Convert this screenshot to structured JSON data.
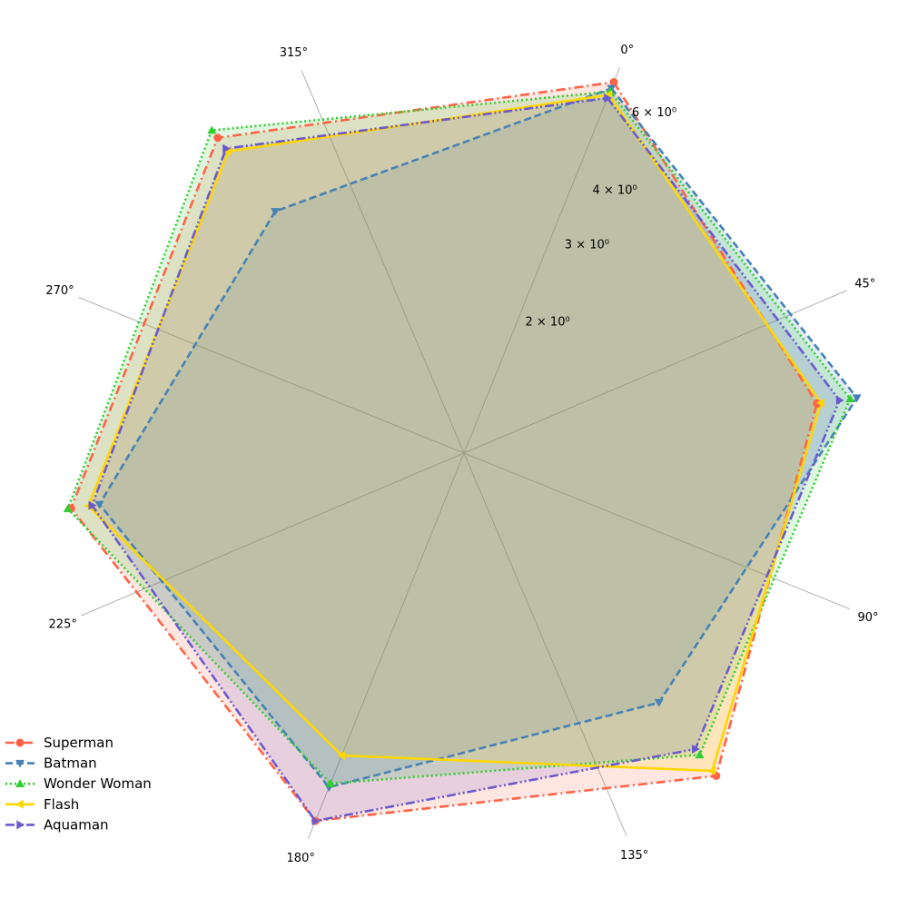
{
  "chart_data": {
    "type": "radar",
    "title": "",
    "radial_scale": "log",
    "radial_range": [
      1,
      7
    ],
    "radial_tick_labels": [
      "2 × 10⁰",
      "3 × 10⁰",
      "4 × 10⁰",
      "6 × 10⁰"
    ],
    "radial_tick_values": [
      2,
      3,
      4,
      6
    ],
    "angle_tick_labels": [
      "0°",
      "45°",
      "90°",
      "135°",
      "180°",
      "225°",
      "270°",
      "315°"
    ],
    "angle_tick_values_deg": [
      0,
      45,
      90,
      135,
      180,
      225,
      270,
      315
    ],
    "categories_angle_deg": [
      0,
      60,
      120,
      180,
      240,
      300
    ],
    "grid": true,
    "legend_position": "bottom-left",
    "series": [
      {
        "name": "Superman",
        "color": "#ff6347",
        "marker": "circle",
        "line_style": "dashdot",
        "values": [
          6.5,
          5.3,
          6.8,
          6.4,
          6.4,
          6.5
        ]
      },
      {
        "name": "Batman",
        "color": "#4682b4",
        "marker": "triangle-down",
        "line_style": "dashed",
        "values": [
          6.3,
          6.4,
          4.4,
          5.4,
          5.6,
          4.2
        ]
      },
      {
        "name": "Wonder Woman",
        "color": "#32cd32",
        "marker": "triangle-up",
        "line_style": "dotted",
        "values": [
          6.2,
          6.2,
          6.0,
          5.3,
          6.5,
          6.8
        ]
      },
      {
        "name": "Flash",
        "color": "#ffd700",
        "marker": "triangle-left",
        "line_style": "solid",
        "values": [
          6.1,
          5.4,
          6.6,
          4.6,
          5.9,
          6.0
        ]
      },
      {
        "name": "Aquaman",
        "color": "#6a5acd",
        "marker": "triangle-right",
        "line_style": "dashdotdot",
        "values": [
          6.0,
          5.9,
          5.8,
          6.4,
          5.8,
          6.1
        ]
      }
    ]
  }
}
